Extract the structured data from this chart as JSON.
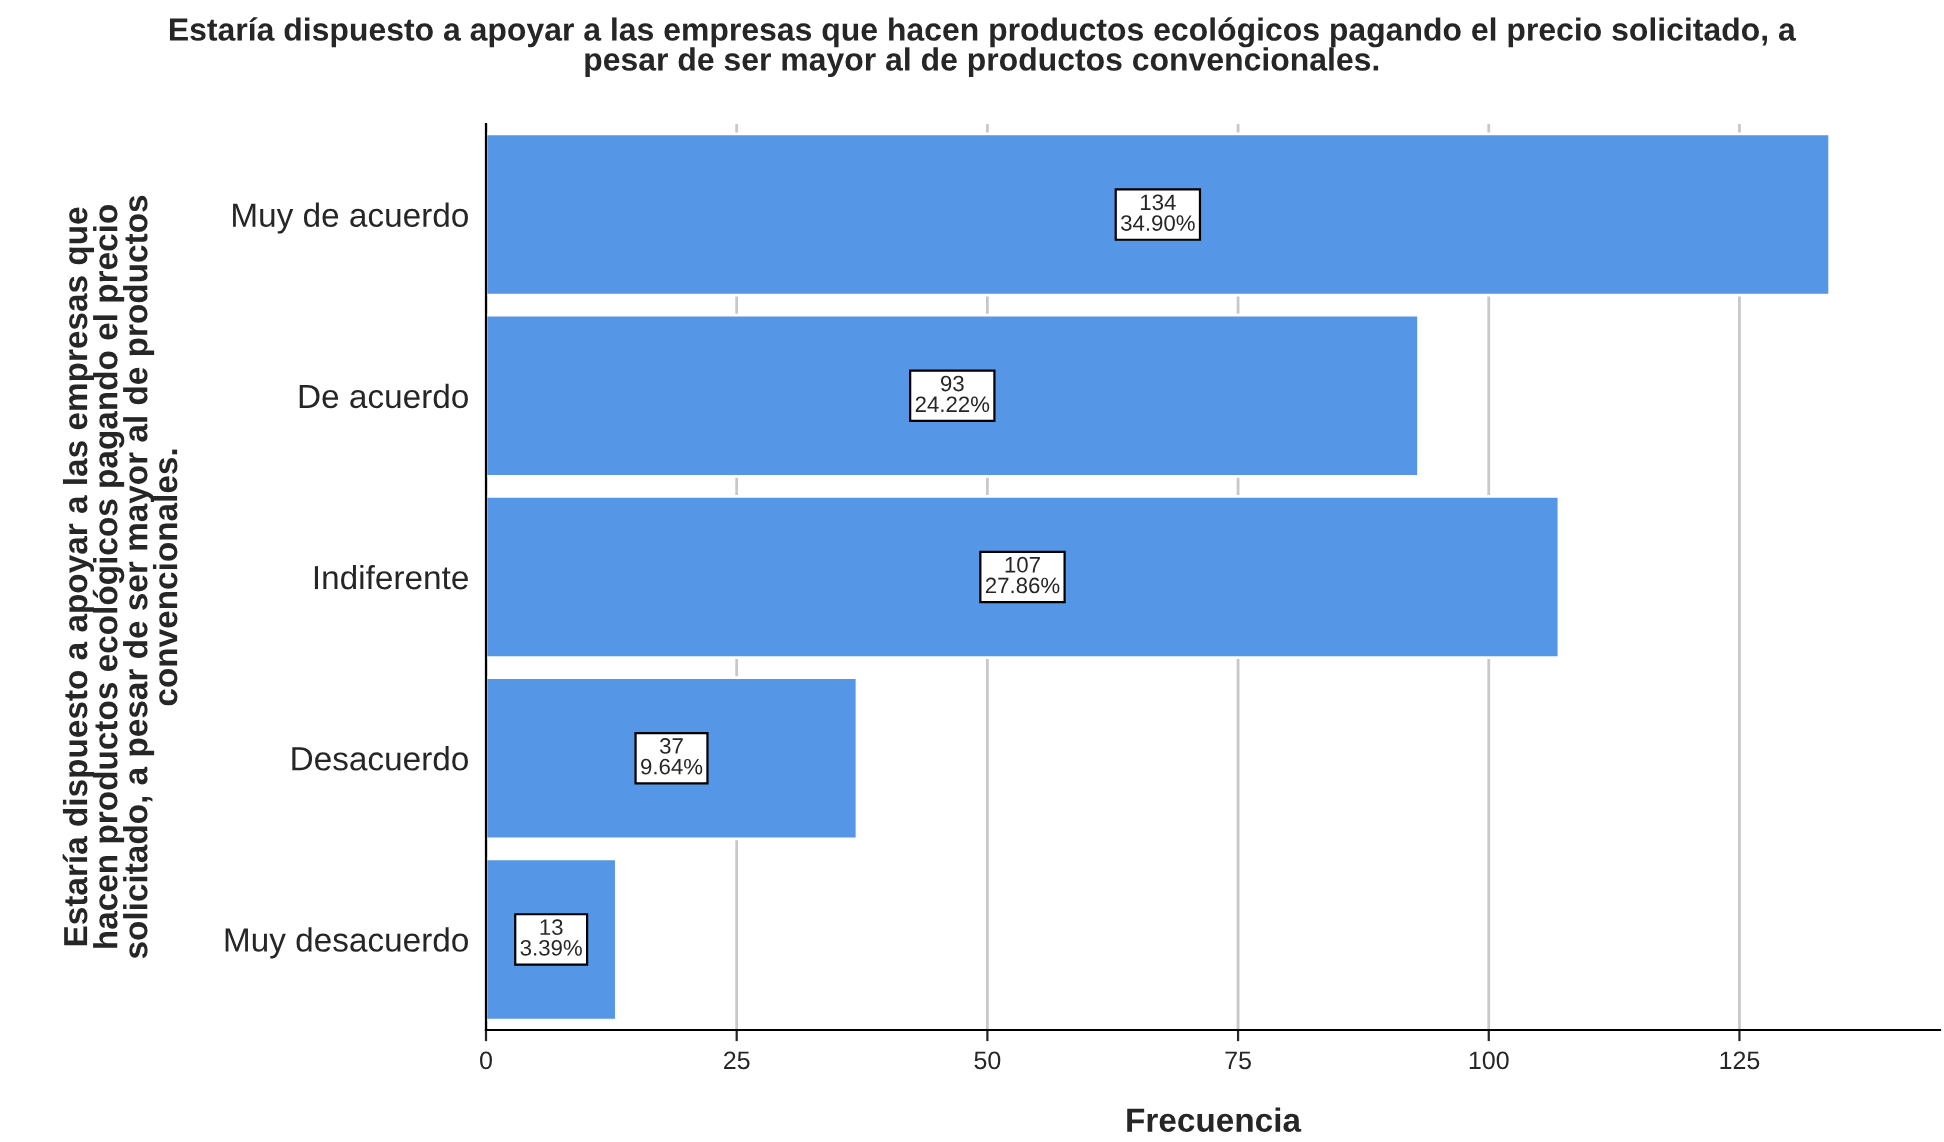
{
  "chart_data": {
    "type": "bar",
    "orientation": "horizontal",
    "title": "Estaría dispuesto a apoyar a las empresas que hacen productos ecológicos pagando el precio solicitado, a\npesar de ser mayor al de productos convencionales.",
    "xlabel": "Frecuencia",
    "ylabel": "Estaría dispuesto a apoyar a las empresas que\nhacen productos ecológicos pagando el precio\nsolicitado, a pesar de ser mayor al de productos\nconvencionales.",
    "categories": [
      "Muy de acuerdo",
      "De acuerdo",
      "Indiferente",
      "Desacuerdo",
      "Muy desacuerdo"
    ],
    "values": [
      134,
      93,
      107,
      37,
      13
    ],
    "value_labels": [
      "134\n34.90%",
      "93\n24.22%",
      "107\n27.86%",
      "37\n9.64%",
      "13\n3.39%"
    ],
    "color": "#5596e6",
    "xlim": [
      0,
      145
    ],
    "xticks": [
      0,
      25,
      50,
      75,
      100,
      125
    ],
    "grid": "x"
  }
}
